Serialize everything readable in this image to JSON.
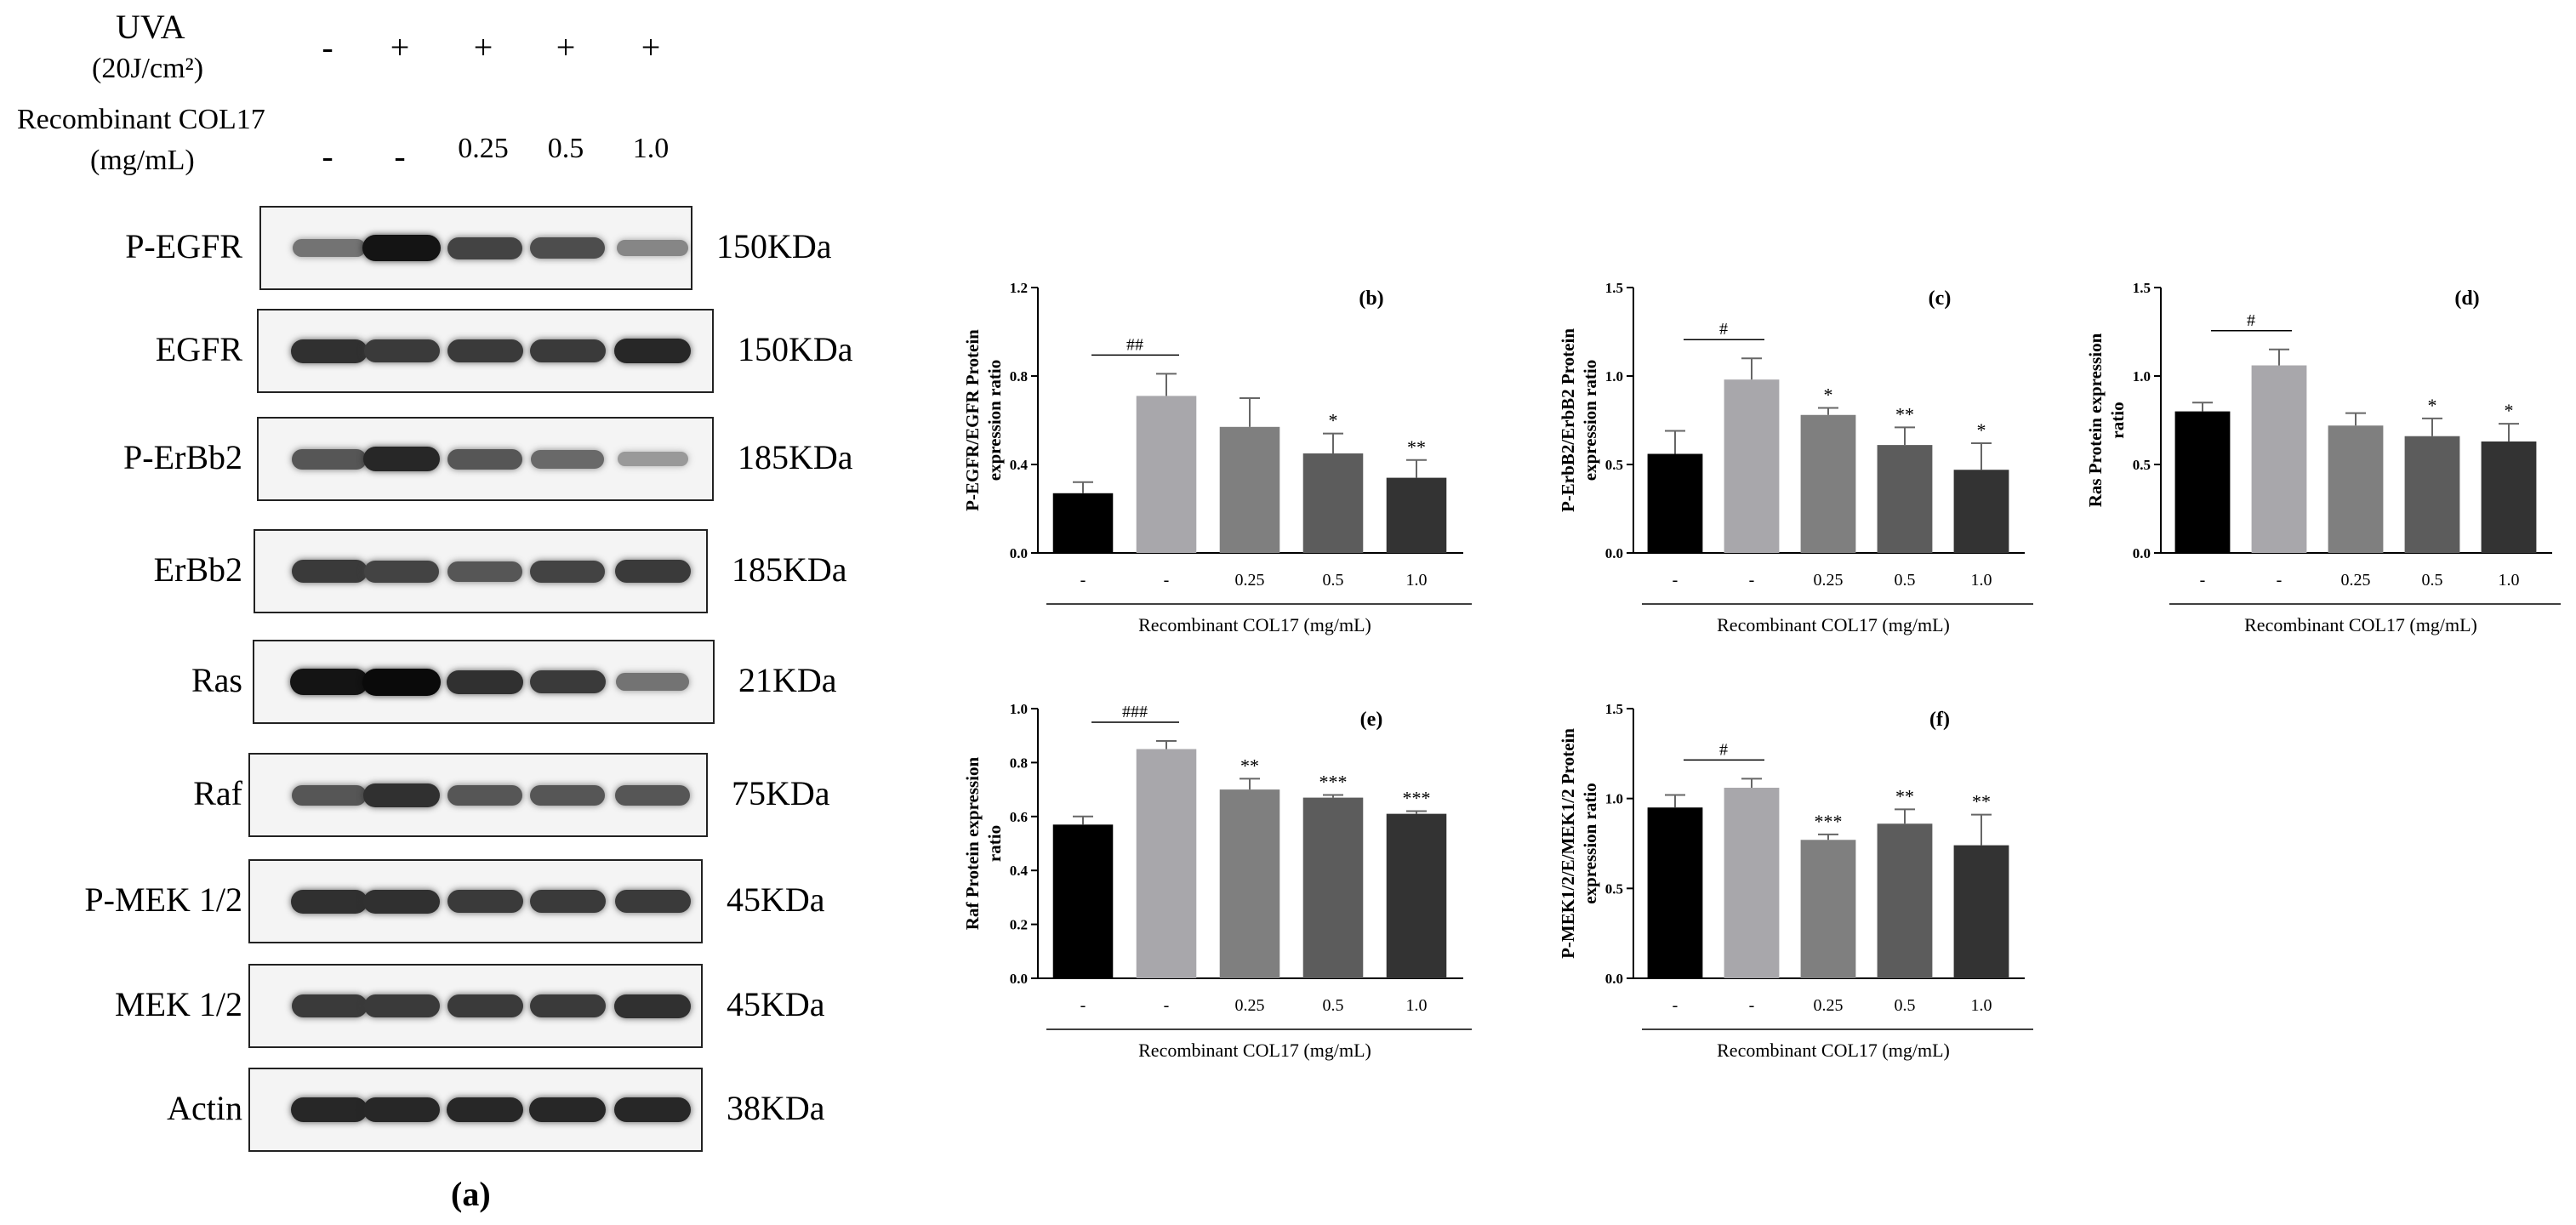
{
  "western_blot": {
    "treatments": [
      {
        "label": "UVA",
        "sublabel": "(20J/cm²)",
        "values": [
          "-",
          "+",
          "+",
          "+",
          "+"
        ]
      },
      {
        "label": "Recombinant COL17",
        "sublabel": "(mg/mL)",
        "values": [
          "-",
          "-",
          "0.25",
          "0.5",
          "1.0"
        ]
      }
    ],
    "proteins": [
      {
        "name": "P-EGFR",
        "kda": "150KDa",
        "intensity": [
          0.45,
          0.95,
          0.7,
          0.65,
          0.35
        ]
      },
      {
        "name": "EGFR",
        "kda": "150KDa",
        "intensity": [
          0.8,
          0.75,
          0.75,
          0.75,
          0.85
        ]
      },
      {
        "name": "P-ErBb2",
        "kda": "185KDa",
        "intensity": [
          0.6,
          0.85,
          0.6,
          0.5,
          0.25
        ]
      },
      {
        "name": "ErBb2",
        "kda": "185KDa",
        "intensity": [
          0.75,
          0.7,
          0.6,
          0.7,
          0.75
        ]
      },
      {
        "name": "Ras",
        "kda": "21KDa",
        "intensity": [
          0.95,
          1.0,
          0.8,
          0.75,
          0.45
        ]
      },
      {
        "name": "Raf",
        "kda": "75KDa",
        "intensity": [
          0.6,
          0.8,
          0.6,
          0.6,
          0.6
        ]
      },
      {
        "name": "P-MEK 1/2",
        "kda": "45KDa",
        "intensity": [
          0.8,
          0.8,
          0.75,
          0.75,
          0.75
        ]
      },
      {
        "name": "MEK 1/2",
        "kda": "45KDa",
        "intensity": [
          0.75,
          0.75,
          0.75,
          0.75,
          0.8
        ]
      },
      {
        "name": "Actin",
        "kda": "38KDa",
        "intensity": [
          0.85,
          0.85,
          0.85,
          0.85,
          0.85
        ]
      }
    ],
    "caption": "(a)"
  },
  "chart_data": [
    {
      "id": "b",
      "type": "bar",
      "panel_label": "(b)",
      "ylabel_lines": [
        "P-EGFR/EGFR Protein",
        "expression ratio"
      ],
      "xlabel": "Recombinant COL17 (mg/mL)",
      "categories": [
        "-",
        "-",
        "0.25",
        "0.5",
        "1.0"
      ],
      "values": [
        0.27,
        0.71,
        0.57,
        0.45,
        0.34
      ],
      "errors": [
        0.05,
        0.1,
        0.13,
        0.09,
        0.08
      ],
      "sig": [
        "",
        "",
        "",
        "*",
        "**"
      ],
      "bracket_label": "##",
      "yticks": [
        "0.0",
        "0.4",
        "0.8",
        "1.2"
      ],
      "ylim": [
        0,
        1.2
      ],
      "colors": [
        "#000000",
        "#a8a7ab",
        "#7f7f7f",
        "#5c5c5c",
        "#333333"
      ]
    },
    {
      "id": "c",
      "type": "bar",
      "panel_label": "(c)",
      "ylabel_lines": [
        "P-ErbB2/ErbB2 Protein",
        "expression ratio"
      ],
      "xlabel": "Recombinant COL17 (mg/mL)",
      "categories": [
        "-",
        "-",
        "0.25",
        "0.5",
        "1.0"
      ],
      "values": [
        0.56,
        0.98,
        0.78,
        0.61,
        0.47
      ],
      "errors": [
        0.13,
        0.12,
        0.04,
        0.1,
        0.15
      ],
      "sig": [
        "",
        "",
        "*",
        "**",
        "*"
      ],
      "bracket_label": "#",
      "yticks": [
        "0.0",
        "0.5",
        "1.0",
        "1.5"
      ],
      "ylim": [
        0,
        1.5
      ],
      "colors": [
        "#000000",
        "#a8a7ab",
        "#7f7f7f",
        "#5c5c5c",
        "#333333"
      ]
    },
    {
      "id": "d",
      "type": "bar",
      "panel_label": "(d)",
      "ylabel_lines": [
        "Ras Protein expression",
        "ratio"
      ],
      "xlabel": "Recombinant COL17 (mg/mL)",
      "categories": [
        "-",
        "-",
        "0.25",
        "0.5",
        "1.0"
      ],
      "values": [
        0.8,
        1.06,
        0.72,
        0.66,
        0.63
      ],
      "errors": [
        0.05,
        0.09,
        0.07,
        0.1,
        0.1
      ],
      "sig": [
        "",
        "",
        "",
        "*",
        "*"
      ],
      "bracket_label": "#",
      "yticks": [
        "0.0",
        "0.5",
        "1.0",
        "1.5"
      ],
      "ylim": [
        0,
        1.5
      ],
      "colors": [
        "#000000",
        "#a8a7ab",
        "#7f7f7f",
        "#5c5c5c",
        "#333333"
      ]
    },
    {
      "id": "e",
      "type": "bar",
      "panel_label": "(e)",
      "ylabel_lines": [
        "Raf  Protein expression",
        "ratio"
      ],
      "xlabel": "Recombinant COL17 (mg/mL)",
      "categories": [
        "-",
        "-",
        "0.25",
        "0.5",
        "1.0"
      ],
      "values": [
        0.57,
        0.85,
        0.7,
        0.67,
        0.61
      ],
      "errors": [
        0.03,
        0.03,
        0.04,
        0.01,
        0.01
      ],
      "sig": [
        "",
        "",
        "**",
        "***",
        "***"
      ],
      "bracket_label": "###",
      "yticks": [
        "0.0",
        "0.2",
        "0.4",
        "0.6",
        "0.8",
        "1.0"
      ],
      "ylim": [
        0,
        1.0
      ],
      "colors": [
        "#000000",
        "#a8a7ab",
        "#7f7f7f",
        "#5c5c5c",
        "#333333"
      ]
    },
    {
      "id": "f",
      "type": "bar",
      "panel_label": "(f)",
      "ylabel_lines": [
        "P-MEK1/2/E/MEK1/2 Protein",
        "expression ratio"
      ],
      "xlabel": "Recombinant COL17 (mg/mL)",
      "categories": [
        "-",
        "-",
        "0.25",
        "0.5",
        "1.0"
      ],
      "values": [
        0.95,
        1.06,
        0.77,
        0.86,
        0.74
      ],
      "errors": [
        0.07,
        0.05,
        0.03,
        0.08,
        0.17
      ],
      "sig": [
        "",
        "",
        "***",
        "**",
        "**"
      ],
      "bracket_label": "#",
      "yticks": [
        "0.0",
        "0.5",
        "1.0",
        "1.5"
      ],
      "ylim": [
        0,
        1.5
      ],
      "colors": [
        "#000000",
        "#a8a7ab",
        "#7f7f7f",
        "#5c5c5c",
        "#333333"
      ]
    }
  ]
}
